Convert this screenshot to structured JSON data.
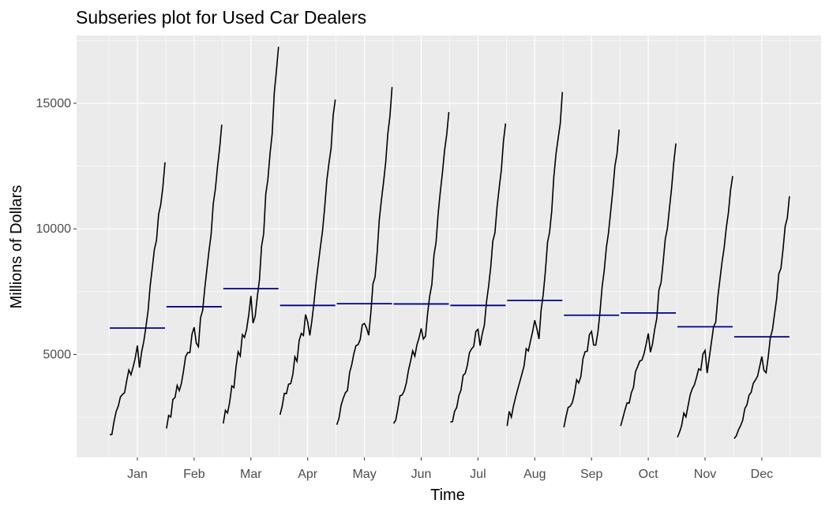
{
  "chart_data": {
    "type": "line",
    "title": "Subseries plot for Used Car Dealers",
    "xlabel": "Time",
    "ylabel": "Millions of Dollars",
    "ylim": [
      900,
      17700
    ],
    "y_ticks": [
      5000,
      10000,
      15000
    ],
    "y_tick_labels": [
      "5000",
      "10000",
      "15000"
    ],
    "grid": true,
    "panel_background": "#ebebeb",
    "grid_color": "#ffffff",
    "line_color": "#000000",
    "mean_color": "#00008b",
    "months": [
      {
        "label": "Jan",
        "mean": 6050,
        "start": 1800,
        "end": 12650
      },
      {
        "label": "Feb",
        "mean": 6900,
        "start": 2050,
        "end": 14150
      },
      {
        "label": "Mar",
        "mean": 7620,
        "start": 2250,
        "end": 17250
      },
      {
        "label": "Apr",
        "mean": 6950,
        "start": 2600,
        "end": 15150
      },
      {
        "label": "May",
        "mean": 7020,
        "start": 2200,
        "end": 15650
      },
      {
        "label": "Jun",
        "mean": 7010,
        "start": 2250,
        "end": 14650
      },
      {
        "label": "Jul",
        "mean": 6950,
        "start": 2300,
        "end": 14200
      },
      {
        "label": "Aug",
        "mean": 7150,
        "start": 2150,
        "end": 15450
      },
      {
        "label": "Sep",
        "mean": 6560,
        "start": 2100,
        "end": 13950
      },
      {
        "label": "Oct",
        "mean": 6650,
        "start": 2150,
        "end": 13400
      },
      {
        "label": "Nov",
        "mean": 6100,
        "start": 1700,
        "end": 12100
      },
      {
        "label": "Dec",
        "mean": 5700,
        "start": 1650,
        "end": 11300
      }
    ]
  }
}
